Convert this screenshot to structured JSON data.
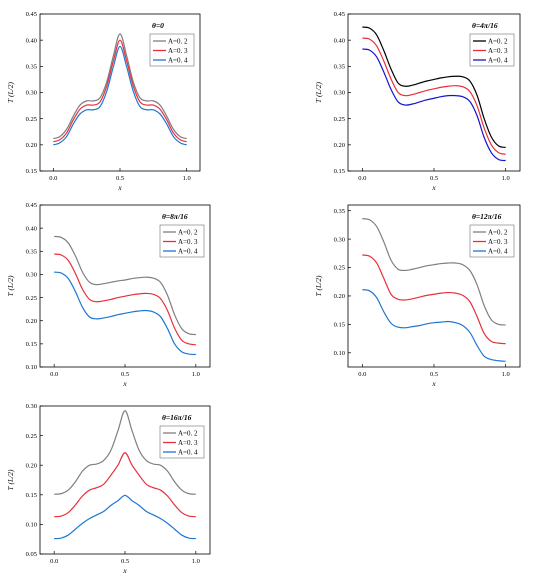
{
  "chart_data": [
    {
      "type": "line",
      "title": "θ=0",
      "xlabel": "x",
      "ylabel": "T (L/2)",
      "xlim": [
        -0.1,
        1.1
      ],
      "ylim": [
        0.15,
        0.45
      ],
      "xticks": [
        0.0,
        0.5,
        1.0
      ],
      "yticks": [
        0.15,
        0.2,
        0.25,
        0.3,
        0.35,
        0.4,
        0.45
      ],
      "xtick_labels": [
        "0.0",
        "0.5",
        "1.0"
      ],
      "ytick_labels": [
        "0.15",
        "0.20",
        "0.25",
        "0.30",
        "0.35",
        "0.40",
        "0.45"
      ],
      "legend_position": "top-right",
      "x": [
        0.0,
        0.05,
        0.1,
        0.15,
        0.2,
        0.25,
        0.3,
        0.35,
        0.4,
        0.45,
        0.5,
        0.55,
        0.6,
        0.65,
        0.7,
        0.75,
        0.8,
        0.85,
        0.9,
        0.95,
        1.0
      ],
      "series": [
        {
          "name": "A=0. 2",
          "color": "#7f7f7f",
          "values": [
            0.212,
            0.216,
            0.23,
            0.255,
            0.276,
            0.284,
            0.284,
            0.29,
            0.32,
            0.37,
            0.412,
            0.37,
            0.32,
            0.29,
            0.284,
            0.284,
            0.276,
            0.255,
            0.23,
            0.216,
            0.212
          ]
        },
        {
          "name": "A=0. 3",
          "color": "#e8303a",
          "values": [
            0.206,
            0.21,
            0.223,
            0.248,
            0.268,
            0.276,
            0.276,
            0.282,
            0.312,
            0.36,
            0.4,
            0.36,
            0.312,
            0.282,
            0.276,
            0.276,
            0.268,
            0.248,
            0.223,
            0.21,
            0.206
          ]
        },
        {
          "name": "A=0. 4",
          "color": "#1f77d4",
          "values": [
            0.2,
            0.204,
            0.216,
            0.24,
            0.259,
            0.267,
            0.267,
            0.273,
            0.302,
            0.349,
            0.388,
            0.349,
            0.302,
            0.273,
            0.267,
            0.267,
            0.259,
            0.24,
            0.216,
            0.204,
            0.2
          ]
        }
      ]
    },
    {
      "type": "line",
      "title": "θ=4π/16",
      "xlabel": "x",
      "ylabel": "T (L/2)",
      "xlim": [
        -0.1,
        1.1
      ],
      "ylim": [
        0.15,
        0.45
      ],
      "xticks": [
        0.0,
        0.5,
        1.0
      ],
      "yticks": [
        0.15,
        0.2,
        0.25,
        0.3,
        0.35,
        0.4,
        0.45
      ],
      "xtick_labels": [
        "0.0",
        "0.5",
        "1.0"
      ],
      "ytick_labels": [
        "0.15",
        "0.20",
        "0.25",
        "0.30",
        "0.35",
        "0.40",
        "0.45"
      ],
      "legend_position": "top-right",
      "x": [
        0.0,
        0.05,
        0.1,
        0.15,
        0.2,
        0.25,
        0.3,
        0.35,
        0.4,
        0.45,
        0.5,
        0.55,
        0.6,
        0.65,
        0.7,
        0.75,
        0.8,
        0.85,
        0.9,
        0.95,
        1.0
      ],
      "series": [
        {
          "name": "A=0. 2",
          "color": "#000000",
          "values": [
            0.425,
            0.423,
            0.41,
            0.38,
            0.345,
            0.318,
            0.312,
            0.314,
            0.318,
            0.322,
            0.325,
            0.328,
            0.33,
            0.331,
            0.33,
            0.322,
            0.295,
            0.25,
            0.215,
            0.198,
            0.195
          ]
        },
        {
          "name": "A=0. 3",
          "color": "#e8303a",
          "values": [
            0.404,
            0.402,
            0.389,
            0.36,
            0.326,
            0.3,
            0.294,
            0.296,
            0.3,
            0.304,
            0.307,
            0.31,
            0.312,
            0.313,
            0.311,
            0.302,
            0.275,
            0.232,
            0.2,
            0.185,
            0.182
          ]
        },
        {
          "name": "A=0. 4",
          "color": "#1414d0",
          "values": [
            0.383,
            0.381,
            0.368,
            0.339,
            0.306,
            0.282,
            0.276,
            0.278,
            0.282,
            0.286,
            0.289,
            0.292,
            0.294,
            0.294,
            0.292,
            0.283,
            0.256,
            0.214,
            0.185,
            0.172,
            0.17
          ]
        }
      ]
    },
    {
      "type": "line",
      "title": "θ=8π/16",
      "xlabel": "x",
      "ylabel": "T (L/2)",
      "xlim": [
        -0.1,
        1.1
      ],
      "ylim": [
        0.1,
        0.45
      ],
      "xticks": [
        0.0,
        0.5,
        1.0
      ],
      "yticks": [
        0.1,
        0.15,
        0.2,
        0.25,
        0.3,
        0.35,
        0.4,
        0.45
      ],
      "xtick_labels": [
        "0.0",
        "0.5",
        "1.0"
      ],
      "ytick_labels": [
        "0.10",
        "0.15",
        "0.20",
        "0.25",
        "0.30",
        "0.35",
        "0.40",
        "0.45"
      ],
      "legend_position": "top-right",
      "x": [
        0.0,
        0.05,
        0.1,
        0.15,
        0.2,
        0.25,
        0.3,
        0.35,
        0.4,
        0.45,
        0.5,
        0.55,
        0.6,
        0.65,
        0.7,
        0.75,
        0.8,
        0.85,
        0.9,
        0.95,
        1.0
      ],
      "series": [
        {
          "name": "A=0. 2",
          "color": "#7f7f7f",
          "values": [
            0.382,
            0.38,
            0.368,
            0.34,
            0.305,
            0.283,
            0.278,
            0.28,
            0.283,
            0.286,
            0.288,
            0.291,
            0.293,
            0.294,
            0.292,
            0.283,
            0.255,
            0.213,
            0.183,
            0.172,
            0.17
          ]
        },
        {
          "name": "A=0. 3",
          "color": "#e8303a",
          "values": [
            0.344,
            0.342,
            0.33,
            0.302,
            0.268,
            0.246,
            0.241,
            0.243,
            0.246,
            0.25,
            0.253,
            0.256,
            0.258,
            0.259,
            0.257,
            0.248,
            0.222,
            0.184,
            0.158,
            0.15,
            0.148
          ]
        },
        {
          "name": "A=0. 4",
          "color": "#1f77d4",
          "values": [
            0.305,
            0.303,
            0.291,
            0.263,
            0.229,
            0.208,
            0.204,
            0.206,
            0.209,
            0.213,
            0.216,
            0.219,
            0.221,
            0.222,
            0.219,
            0.209,
            0.183,
            0.15,
            0.133,
            0.128,
            0.127
          ]
        }
      ]
    },
    {
      "type": "line",
      "title": "θ=12π/16",
      "xlabel": "x",
      "ylabel": "T (L/2)",
      "xlim": [
        -0.1,
        1.1
      ],
      "ylim": [
        0.075,
        0.36
      ],
      "xticks": [
        0.0,
        0.5,
        1.0
      ],
      "yticks": [
        0.1,
        0.15,
        0.2,
        0.25,
        0.3,
        0.35
      ],
      "xtick_labels": [
        "0.0",
        "0.5",
        "1.0"
      ],
      "ytick_labels": [
        "0.10",
        "0.15",
        "0.20",
        "0.25",
        "0.30",
        "0.35"
      ],
      "legend_position": "top-right",
      "x": [
        0.0,
        0.05,
        0.1,
        0.15,
        0.2,
        0.25,
        0.3,
        0.35,
        0.4,
        0.45,
        0.5,
        0.55,
        0.6,
        0.65,
        0.7,
        0.75,
        0.8,
        0.85,
        0.9,
        0.95,
        1.0
      ],
      "series": [
        {
          "name": "A=0. 2",
          "color": "#7f7f7f",
          "values": [
            0.336,
            0.334,
            0.322,
            0.295,
            0.263,
            0.247,
            0.245,
            0.247,
            0.25,
            0.253,
            0.255,
            0.257,
            0.258,
            0.258,
            0.255,
            0.245,
            0.22,
            0.183,
            0.158,
            0.15,
            0.149
          ]
        },
        {
          "name": "A=0. 3",
          "color": "#e8303a",
          "values": [
            0.272,
            0.27,
            0.258,
            0.231,
            0.203,
            0.194,
            0.193,
            0.195,
            0.198,
            0.201,
            0.203,
            0.205,
            0.206,
            0.205,
            0.201,
            0.19,
            0.164,
            0.134,
            0.12,
            0.117,
            0.116
          ]
        },
        {
          "name": "A=0. 4",
          "color": "#1f77d4",
          "values": [
            0.211,
            0.209,
            0.197,
            0.172,
            0.152,
            0.145,
            0.144,
            0.146,
            0.148,
            0.151,
            0.153,
            0.154,
            0.155,
            0.153,
            0.148,
            0.136,
            0.113,
            0.094,
            0.088,
            0.086,
            0.085
          ]
        }
      ]
    },
    {
      "type": "line",
      "title": "θ=16π/16",
      "xlabel": "x",
      "ylabel": "T (L/2)",
      "xlim": [
        -0.1,
        1.1
      ],
      "ylim": [
        0.05,
        0.3
      ],
      "xticks": [
        0.0,
        0.5,
        1.0
      ],
      "yticks": [
        0.05,
        0.1,
        0.15,
        0.2,
        0.25,
        0.3
      ],
      "xtick_labels": [
        "0.0",
        "0.5",
        "1.0"
      ],
      "ytick_labels": [
        "0.05",
        "0.10",
        "0.15",
        "0.20",
        "0.25",
        "0.30"
      ],
      "legend_position": "top-right",
      "x": [
        0.0,
        0.05,
        0.1,
        0.15,
        0.2,
        0.25,
        0.3,
        0.35,
        0.4,
        0.45,
        0.5,
        0.55,
        0.6,
        0.65,
        0.7,
        0.75,
        0.8,
        0.85,
        0.9,
        0.95,
        1.0
      ],
      "series": [
        {
          "name": "A=0. 2",
          "color": "#7f7f7f",
          "values": [
            0.151,
            0.152,
            0.158,
            0.172,
            0.19,
            0.2,
            0.202,
            0.208,
            0.225,
            0.258,
            0.292,
            0.258,
            0.225,
            0.208,
            0.202,
            0.2,
            0.19,
            0.172,
            0.158,
            0.152,
            0.151
          ]
        },
        {
          "name": "A=0. 3",
          "color": "#e8303a",
          "values": [
            0.113,
            0.114,
            0.12,
            0.133,
            0.148,
            0.158,
            0.162,
            0.168,
            0.183,
            0.2,
            0.221,
            0.2,
            0.183,
            0.168,
            0.162,
            0.158,
            0.148,
            0.133,
            0.12,
            0.114,
            0.113
          ]
        },
        {
          "name": "A=0. 4",
          "color": "#1f77d4",
          "values": [
            0.076,
            0.077,
            0.082,
            0.092,
            0.102,
            0.11,
            0.116,
            0.122,
            0.132,
            0.14,
            0.149,
            0.14,
            0.132,
            0.122,
            0.116,
            0.11,
            0.102,
            0.092,
            0.082,
            0.077,
            0.076
          ]
        }
      ]
    }
  ]
}
